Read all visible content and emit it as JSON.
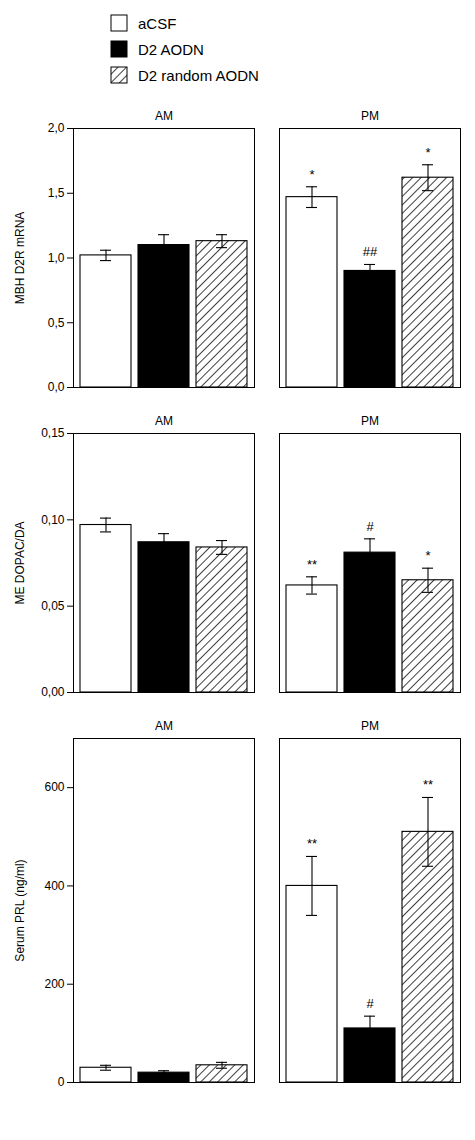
{
  "chart_data": [
    {
      "type": "bar",
      "legend": "top",
      "categories": [
        "AM",
        "PM"
      ],
      "ylabel": "MBH D2R mRNA",
      "ylim": [
        0,
        2.0
      ],
      "yticks": [
        {
          "value": 0.0,
          "label": "0,0"
        },
        {
          "value": 0.5,
          "label": "0,5"
        },
        {
          "value": 1.0,
          "label": "1,0"
        },
        {
          "value": 1.5,
          "label": "1,5"
        },
        {
          "value": 2.0,
          "label": "2,0"
        }
      ],
      "series": [
        {
          "name": "aCSF",
          "color": "white",
          "values": [
            1.02,
            1.47
          ],
          "errors": [
            0.04,
            0.08
          ],
          "annotations": [
            null,
            "*"
          ]
        },
        {
          "name": "D2 AODN",
          "color": "black",
          "values": [
            1.1,
            0.9
          ],
          "errors": [
            0.08,
            0.05
          ],
          "annotations": [
            null,
            "##"
          ]
        },
        {
          "name": "D2 random AODN",
          "color": "white",
          "values": [
            1.13,
            1.62
          ],
          "errors": [
            0.05,
            0.1
          ],
          "annotations": [
            null,
            "*"
          ]
        }
      ]
    },
    {
      "type": "bar",
      "categories": [
        "AM",
        "PM"
      ],
      "ylabel": "ME DOPAC/DA",
      "ylim": [
        0,
        0.15
      ],
      "yticks": [
        {
          "value": 0.0,
          "label": "0,00"
        },
        {
          "value": 0.05,
          "label": "0,05"
        },
        {
          "value": 0.1,
          "label": "0,10"
        },
        {
          "value": 0.15,
          "label": "0,15"
        }
      ],
      "series": [
        {
          "name": "aCSF",
          "color": "white",
          "values": [
            0.097,
            0.062
          ],
          "errors": [
            0.004,
            0.005
          ],
          "annotations": [
            null,
            "**"
          ]
        },
        {
          "name": "D2 AODN",
          "color": "black",
          "values": [
            0.087,
            0.081
          ],
          "errors": [
            0.005,
            0.008
          ],
          "annotations": [
            null,
            "#"
          ]
        },
        {
          "name": "D2 random AODN",
          "color": "white",
          "values": [
            0.084,
            0.065
          ],
          "errors": [
            0.004,
            0.007
          ],
          "annotations": [
            null,
            "*"
          ]
        }
      ]
    },
    {
      "type": "bar",
      "categories": [
        "AM",
        "PM"
      ],
      "ylabel": "Serum PRL (ng/ml)",
      "ylim": [
        0,
        700
      ],
      "yticks": [
        0,
        200,
        400,
        600
      ],
      "series": [
        {
          "name": "aCSF",
          "color": "white",
          "values": [
            30,
            400
          ],
          "errors": [
            5,
            60
          ],
          "annotations": [
            null,
            "**"
          ]
        },
        {
          "name": "D2 AODN",
          "color": "black",
          "values": [
            20,
            110
          ],
          "errors": [
            4,
            25
          ],
          "annotations": [
            null,
            "#"
          ]
        },
        {
          "name": "D2 random AODN",
          "color": "white",
          "values": [
            35,
            510
          ],
          "errors": [
            6,
            70
          ],
          "annotations": [
            null,
            "**"
          ]
        }
      ]
    }
  ]
}
